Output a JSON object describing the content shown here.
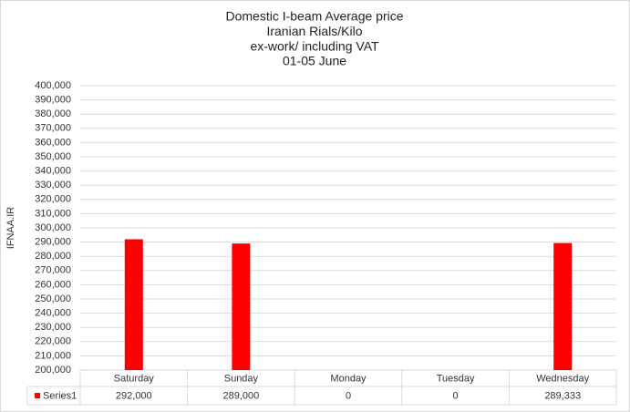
{
  "chart_data": {
    "type": "bar",
    "title": [
      "Domestic I-beam Average price",
      "Iranian Rials/Kilo",
      "ex-work/ including VAT",
      "01-05 June"
    ],
    "y_label": "IFNAA.IR",
    "categories": [
      "Saturday",
      "Sunday",
      "Monday",
      "Tuesday",
      "Wednesday"
    ],
    "series": [
      {
        "name": "Series1",
        "color": "#ff0000",
        "values": [
          292000,
          289000,
          0,
          0,
          289333
        ],
        "value_labels": [
          "292,000",
          "289,000",
          "0",
          "0",
          "289,333"
        ]
      }
    ],
    "ylim": [
      200000,
      400000
    ],
    "yticks": [
      {
        "value": 200000,
        "label": "200,000"
      },
      {
        "value": 210000,
        "label": "210,000"
      },
      {
        "value": 220000,
        "label": "220,000"
      },
      {
        "value": 230000,
        "label": "230,000"
      },
      {
        "value": 240000,
        "label": "240,000"
      },
      {
        "value": 250000,
        "label": "250,000"
      },
      {
        "value": 260000,
        "label": "260,000"
      },
      {
        "value": 270000,
        "label": "270,000"
      },
      {
        "value": 280000,
        "label": "280,000"
      },
      {
        "value": 290000,
        "label": "290,000"
      },
      {
        "value": 300000,
        "label": "300,000"
      },
      {
        "value": 310000,
        "label": "310,000"
      },
      {
        "value": 320000,
        "label": "320,000"
      },
      {
        "value": 330000,
        "label": "330,000"
      },
      {
        "value": 340000,
        "label": "340,000"
      },
      {
        "value": 350000,
        "label": "350,000"
      },
      {
        "value": 360000,
        "label": "360,000"
      },
      {
        "value": 370000,
        "label": "370,000"
      },
      {
        "value": 380000,
        "label": "380,000"
      },
      {
        "value": 390000,
        "label": "390,000"
      },
      {
        "value": 400000,
        "label": "400,000"
      }
    ],
    "grid": true
  }
}
